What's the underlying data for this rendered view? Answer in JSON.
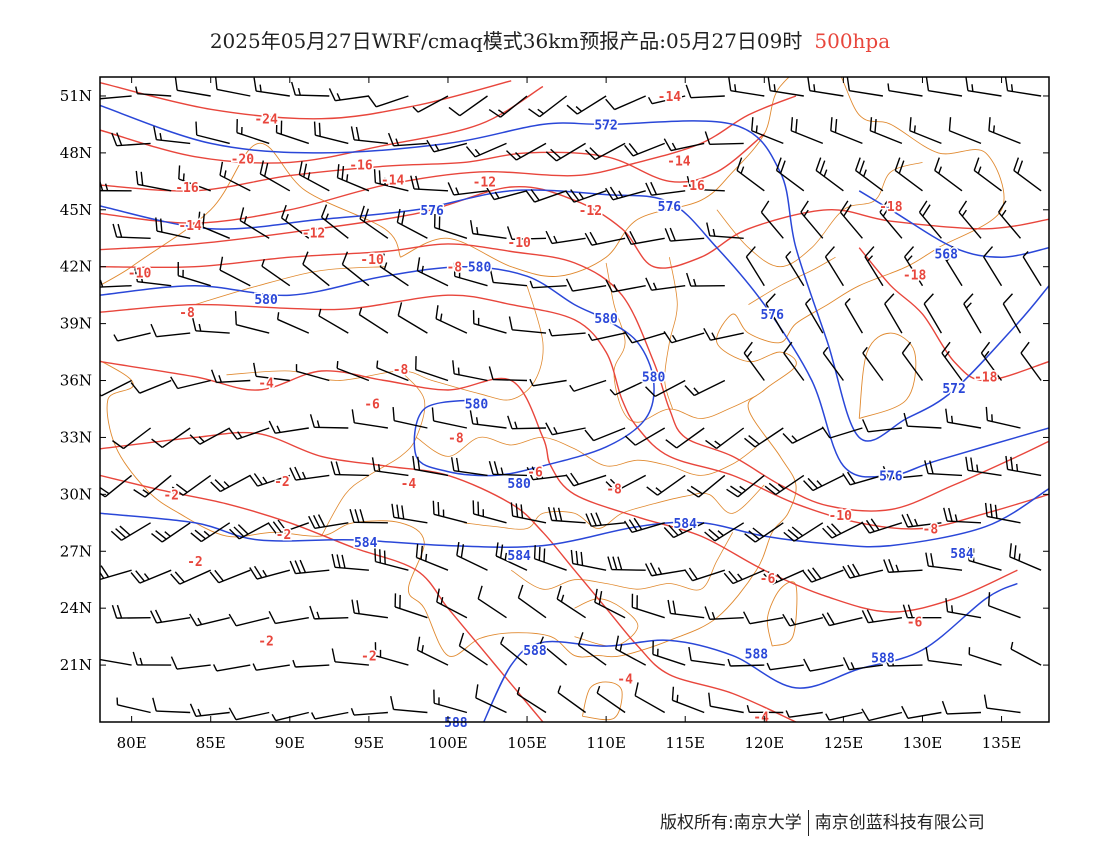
{
  "title": {
    "main": "2025年05月27日WRF/cmaq模式36km预报产品:05月27日09时",
    "level": "500hpa"
  },
  "colors": {
    "temperature": "#e8463c",
    "height": "#2a47d8",
    "boundary": "#e0892f",
    "barb": "#000000",
    "frame": "#000000"
  },
  "axes": {
    "lon_labels": [
      "80E",
      "85E",
      "90E",
      "95E",
      "100E",
      "105E",
      "110E",
      "115E",
      "120E",
      "125E",
      "130E",
      "135E"
    ],
    "lon_values": [
      80,
      85,
      90,
      95,
      100,
      105,
      110,
      115,
      120,
      125,
      130,
      135
    ],
    "lat_labels": [
      "51N",
      "48N",
      "45N",
      "42N",
      "39N",
      "36N",
      "33N",
      "30N",
      "27N",
      "24N",
      "21N"
    ],
    "lat_values": [
      51,
      48,
      45,
      42,
      39,
      36,
      33,
      30,
      27,
      24,
      21
    ],
    "lon_range": [
      78,
      138
    ],
    "lat_range": [
      18,
      52
    ]
  },
  "height_contours": [
    {
      "label": "572",
      "points": [
        [
          78,
          50.5
        ],
        [
          85,
          48.5
        ],
        [
          92,
          48
        ],
        [
          100,
          48.5
        ],
        [
          106,
          49.5
        ],
        [
          110,
          49.5
        ],
        [
          118,
          49.5
        ],
        [
          121,
          47
        ],
        [
          122,
          43
        ],
        [
          124,
          38
        ],
        [
          126,
          33
        ],
        [
          129,
          34
        ],
        [
          132,
          35.5
        ],
        [
          136,
          39
        ],
        [
          138,
          41
        ]
      ],
      "labels_at": [
        [
          110,
          49.5
        ],
        [
          132,
          35.6
        ]
      ]
    },
    {
      "label": "576",
      "points": [
        [
          78,
          45.2
        ],
        [
          85,
          44
        ],
        [
          92,
          44.5
        ],
        [
          98,
          45
        ],
        [
          104,
          46
        ],
        [
          110,
          45.8
        ],
        [
          114,
          45.4
        ],
        [
          117,
          43
        ],
        [
          120,
          40
        ],
        [
          123,
          36
        ],
        [
          125,
          31.5
        ],
        [
          128,
          31
        ],
        [
          131,
          31.8
        ],
        [
          138,
          33.5
        ]
      ],
      "labels_at": [
        [
          99,
          45
        ],
        [
          114,
          45.2
        ],
        [
          120.5,
          39.5
        ],
        [
          128,
          31
        ]
      ]
    },
    {
      "label": "580",
      "points": [
        [
          78,
          40.5
        ],
        [
          84,
          41
        ],
        [
          90,
          40.5
        ],
        [
          96,
          41.5
        ],
        [
          101,
          42
        ],
        [
          105,
          41.5
        ],
        [
          108,
          40
        ],
        [
          110,
          39.2
        ],
        [
          112,
          38
        ],
        [
          113,
          36
        ],
        [
          112.5,
          34
        ],
        [
          110,
          32.5
        ],
        [
          106,
          31.5
        ],
        [
          103,
          31
        ],
        [
          100,
          31.2
        ],
        [
          98,
          32
        ],
        [
          98.5,
          34.5
        ],
        [
          102,
          35
        ]
      ],
      "labels_at": [
        [
          88.5,
          40.3
        ],
        [
          102,
          42
        ],
        [
          110,
          39.3
        ],
        [
          113,
          36.2
        ],
        [
          101.8,
          34.8
        ],
        [
          104.5,
          30.6
        ]
      ]
    },
    {
      "label": "584",
      "points": [
        [
          78,
          29
        ],
        [
          84,
          28.5
        ],
        [
          88,
          27.6
        ],
        [
          94,
          27.6
        ],
        [
          100,
          27.3
        ],
        [
          106,
          27.3
        ],
        [
          112,
          28.3
        ],
        [
          116,
          28.5
        ],
        [
          120,
          27.8
        ],
        [
          124,
          27.4
        ],
        [
          128,
          27.3
        ],
        [
          134,
          28.3
        ],
        [
          138,
          30.3
        ]
      ],
      "labels_at": [
        [
          94.8,
          27.5
        ],
        [
          104.5,
          26.8
        ],
        [
          115,
          28.5
        ],
        [
          132.5,
          26.9
        ]
      ]
    },
    {
      "label": "588",
      "points": [
        [
          102,
          17.5
        ],
        [
          104,
          21
        ],
        [
          106,
          22.2
        ],
        [
          110,
          22
        ],
        [
          114,
          22.3
        ],
        [
          118,
          21.5
        ],
        [
          122,
          19.8
        ],
        [
          126,
          20.8
        ],
        [
          130,
          21.8
        ],
        [
          134,
          24.5
        ],
        [
          136,
          25.3
        ]
      ],
      "labels_at": [
        [
          105.5,
          21.8
        ],
        [
          119.5,
          21.6
        ],
        [
          127.5,
          21.4
        ],
        [
          100.5,
          18
        ]
      ]
    },
    {
      "label": "568",
      "points": [
        [
          126,
          46
        ],
        [
          128,
          45
        ],
        [
          132,
          43
        ],
        [
          135,
          42.5
        ],
        [
          138,
          43
        ]
      ],
      "labels_at": [
        [
          131.5,
          42.7
        ]
      ]
    }
  ],
  "temperature_contours": [
    {
      "label": "-24",
      "points": [
        [
          78,
          51.7
        ],
        [
          85,
          50.3
        ],
        [
          92,
          49.8
        ],
        [
          98,
          50.5
        ],
        [
          104,
          51.8
        ]
      ],
      "labels_at": [
        [
          88.5,
          49.8
        ]
      ]
    },
    {
      "label": "-20",
      "points": [
        [
          78,
          49.2
        ],
        [
          84,
          47.8
        ],
        [
          90,
          47.5
        ],
        [
          96,
          48.4
        ],
        [
          102,
          49.5
        ],
        [
          106,
          51.5
        ]
      ],
      "labels_at": [
        [
          87,
          47.7
        ]
      ]
    },
    {
      "label": "-16",
      "points": [
        [
          78,
          46.3
        ],
        [
          84,
          46
        ],
        [
          90,
          46.8
        ],
        [
          96,
          47.3
        ],
        [
          101,
          47.5
        ],
        [
          105,
          48
        ],
        [
          110,
          47.8
        ],
        [
          114,
          46.5
        ],
        [
          117,
          47
        ],
        [
          120,
          49
        ]
      ],
      "labels_at": [
        [
          83.5,
          46.2
        ],
        [
          94.5,
          47.4
        ],
        [
          115.5,
          46.3
        ]
      ]
    },
    {
      "label": "-14",
      "points": [
        [
          78,
          44.8
        ],
        [
          84,
          44.3
        ],
        [
          90,
          45
        ],
        [
          96,
          46.3
        ],
        [
          102,
          47
        ],
        [
          108,
          46.8
        ],
        [
          112,
          47.5
        ],
        [
          116,
          48.5
        ],
        [
          119,
          50
        ],
        [
          122,
          51
        ]
      ],
      "labels_at": [
        [
          83.7,
          44.2
        ],
        [
          96.5,
          46.6
        ],
        [
          114.6,
          47.6
        ],
        [
          114,
          51
        ]
      ]
    },
    {
      "label": "-12",
      "points": [
        [
          78,
          42.9
        ],
        [
          84,
          43.2
        ],
        [
          90,
          43.8
        ],
        [
          98,
          44.8
        ],
        [
          104,
          46.2
        ],
        [
          108,
          45.5
        ],
        [
          111,
          44
        ],
        [
          113,
          42
        ],
        [
          116,
          42.5
        ],
        [
          119,
          44
        ],
        [
          124,
          45
        ],
        [
          128,
          44.4
        ],
        [
          134,
          44
        ],
        [
          138,
          44.5
        ]
      ],
      "labels_at": [
        [
          91.5,
          43.8
        ],
        [
          102.3,
          46.5
        ],
        [
          109,
          45
        ]
      ]
    },
    {
      "label": "-10",
      "points": [
        [
          78,
          42
        ],
        [
          84,
          42
        ],
        [
          90,
          42.5
        ],
        [
          96,
          42.8
        ],
        [
          100,
          43.2
        ],
        [
          104,
          42.8
        ],
        [
          108,
          42.2
        ],
        [
          111,
          40.5
        ],
        [
          113,
          37
        ],
        [
          114,
          34.5
        ],
        [
          115,
          33
        ],
        [
          118,
          32
        ],
        [
          121,
          30.5
        ],
        [
          124,
          29.4
        ],
        [
          128,
          29.2
        ],
        [
          132,
          30.5
        ],
        [
          136,
          32
        ],
        [
          138,
          32.8
        ]
      ],
      "labels_at": [
        [
          80.5,
          41.7
        ],
        [
          95.2,
          42.4
        ],
        [
          104.5,
          43.3
        ],
        [
          124.8,
          28.9
        ]
      ]
    },
    {
      "label": "-8",
      "points": [
        [
          78,
          39.6
        ],
        [
          84,
          40
        ],
        [
          90,
          39.8
        ],
        [
          94,
          39.8
        ],
        [
          100,
          40.5
        ],
        [
          104,
          40
        ],
        [
          108,
          39.2
        ],
        [
          110,
          37.5
        ],
        [
          111,
          35
        ],
        [
          112,
          33.5
        ],
        [
          114,
          32
        ],
        [
          118,
          31
        ],
        [
          122,
          29.5
        ],
        [
          126,
          28.5
        ],
        [
          130,
          28.2
        ],
        [
          134,
          29
        ],
        [
          138,
          30
        ]
      ],
      "labels_at": [
        [
          83.5,
          39.6
        ],
        [
          100.4,
          42
        ],
        [
          97,
          36.6
        ],
        [
          100.5,
          33
        ],
        [
          110.5,
          30.3
        ],
        [
          130.5,
          28.2
        ]
      ]
    },
    {
      "label": "-6",
      "points": [
        [
          78,
          37
        ],
        [
          84,
          36.2
        ],
        [
          88,
          35.5
        ],
        [
          92,
          36.5
        ],
        [
          96,
          36
        ],
        [
          100,
          35.5
        ],
        [
          104,
          36
        ],
        [
          106,
          33
        ],
        [
          106.5,
          31.5
        ],
        [
          108,
          30
        ],
        [
          112,
          28.8
        ],
        [
          116,
          27.8
        ],
        [
          120,
          26
        ],
        [
          124,
          24.6
        ],
        [
          128,
          23.8
        ],
        [
          132,
          24.5
        ],
        [
          136,
          26
        ]
      ],
      "labels_at": [
        [
          95.2,
          34.8
        ],
        [
          105.5,
          31.2
        ],
        [
          120.2,
          25.6
        ],
        [
          129.5,
          23.3
        ]
      ]
    },
    {
      "label": "-4",
      "points": [
        [
          78,
          32.4
        ],
        [
          84,
          33
        ],
        [
          88,
          33.2
        ],
        [
          92,
          32
        ],
        [
          96,
          31.5
        ],
        [
          100,
          31
        ],
        [
          104,
          29.5
        ],
        [
          106,
          28
        ],
        [
          108,
          26
        ],
        [
          110,
          24
        ],
        [
          112,
          22
        ],
        [
          114,
          20.5
        ],
        [
          118,
          19.5
        ],
        [
          122,
          18
        ]
      ],
      "labels_at": [
        [
          88.5,
          35.9
        ],
        [
          97.5,
          30.6
        ],
        [
          111.2,
          20.3
        ],
        [
          119.8,
          18.3
        ]
      ]
    },
    {
      "label": "-2",
      "points": [
        [
          78,
          31
        ],
        [
          82,
          30.2
        ],
        [
          86,
          29.5
        ],
        [
          90,
          28.5
        ],
        [
          94,
          27.2
        ],
        [
          98,
          26
        ],
        [
          100,
          24
        ],
        [
          102,
          22
        ],
        [
          104,
          20
        ],
        [
          106,
          18
        ]
      ],
      "labels_at": [
        [
          82.5,
          30
        ],
        [
          89.5,
          30.7
        ],
        [
          89.6,
          27.9
        ],
        [
          84,
          26.5
        ],
        [
          88.5,
          22.3
        ],
        [
          95,
          21.5
        ]
      ]
    },
    {
      "label": "-18",
      "points": [
        [
          126,
          43
        ],
        [
          128,
          41
        ],
        [
          130,
          39.5
        ],
        [
          132,
          37
        ],
        [
          134,
          36
        ],
        [
          138,
          37
        ]
      ],
      "labels_at": [
        [
          129.5,
          41.6
        ],
        [
          134,
          36.2
        ],
        [
          128,
          45.2
        ]
      ]
    }
  ],
  "barb_rows": [
    51,
    48.5,
    46,
    43.5,
    41,
    38.5,
    36,
    33.5,
    31,
    28.5,
    26,
    23.5,
    21,
    18.5
  ],
  "barb_cols": [
    80,
    82.5,
    85,
    87.5,
    90,
    92.5,
    95,
    97.5,
    100,
    102.5,
    105,
    107.5,
    110,
    112.5,
    115,
    117.5,
    120,
    122.5,
    125,
    127.5,
    130,
    132.5,
    135,
    137.5
  ],
  "footer": {
    "left": "版权所有:南京大学",
    "right": "南京创蓝科技有限公司"
  }
}
